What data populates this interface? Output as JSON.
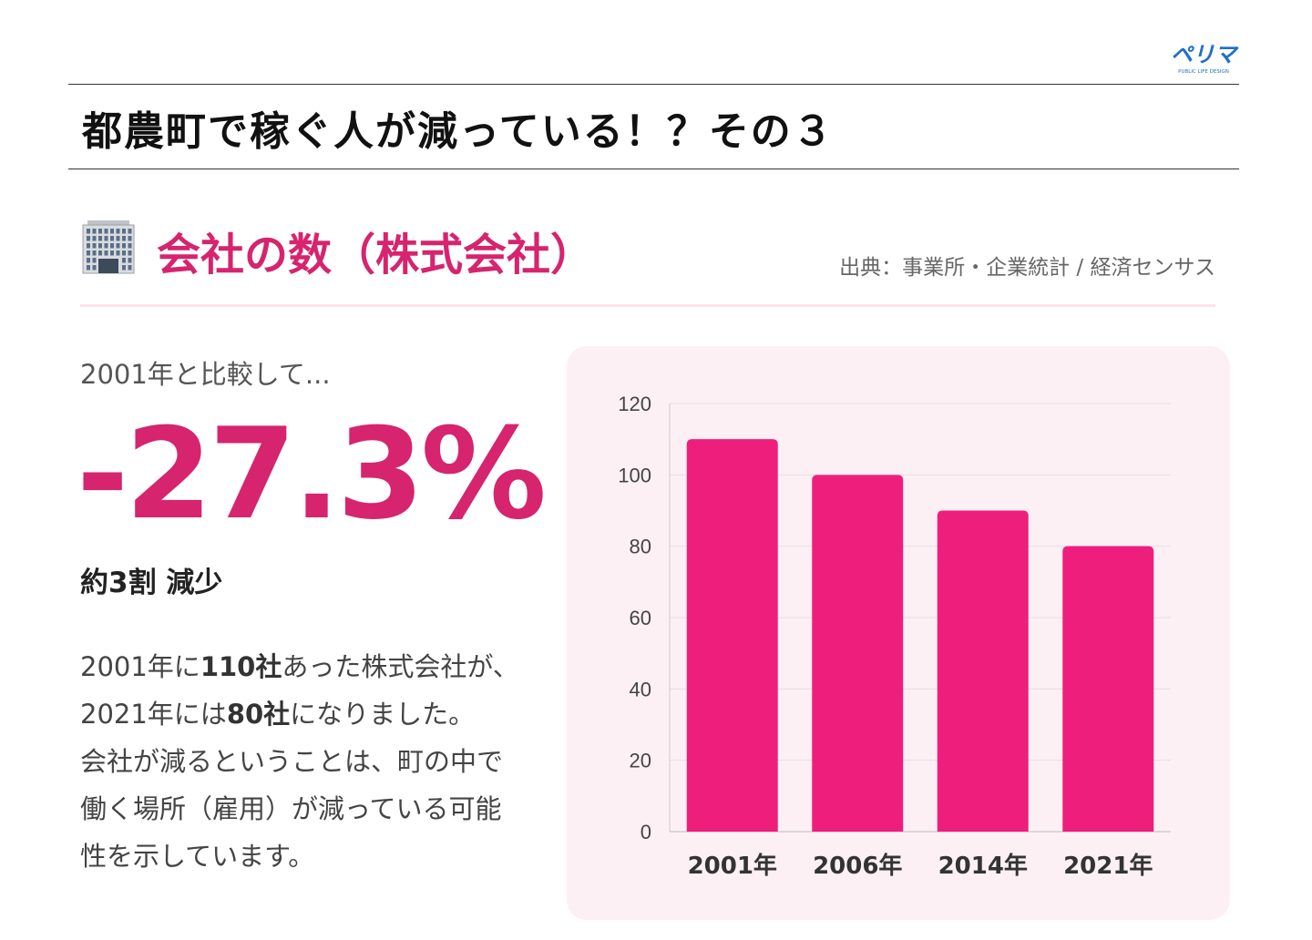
{
  "logo": {
    "text": "ペリマ",
    "subtext": "PUBLIC LIFE DESIGN"
  },
  "header": {
    "title": "都農町で稼ぐ人が減っている！？その３"
  },
  "section": {
    "icon": "office-building-icon",
    "heading": "会社の数（株式会社）",
    "source": "出典：事業所・企業統計 / 経済センサス"
  },
  "stats": {
    "compare": "2001年と比較して...",
    "change": "-27.3%",
    "summary": "約3割 減少",
    "para": {
      "p1": "2001年に",
      "v1": "110社",
      "p2": "あった株式会社が、2021年には",
      "v2": "80社",
      "p3": "になりました。",
      "p4": "会社が減るということは、町の中で働く場所（雇用）が減っている可能性を示しています。"
    }
  },
  "colors": {
    "accent": "#d6246e",
    "bar": "#ee1f7c",
    "card": "#fdf0f4"
  },
  "chart_data": {
    "type": "bar",
    "categories": [
      "2001年",
      "2006年",
      "2014年",
      "2021年"
    ],
    "values": [
      110,
      100,
      90,
      80
    ],
    "ylim": [
      0,
      120
    ],
    "yticks": [
      0,
      20,
      40,
      60,
      80,
      100,
      120
    ],
    "title": "",
    "xlabel": "",
    "ylabel": "",
    "grid": true
  }
}
